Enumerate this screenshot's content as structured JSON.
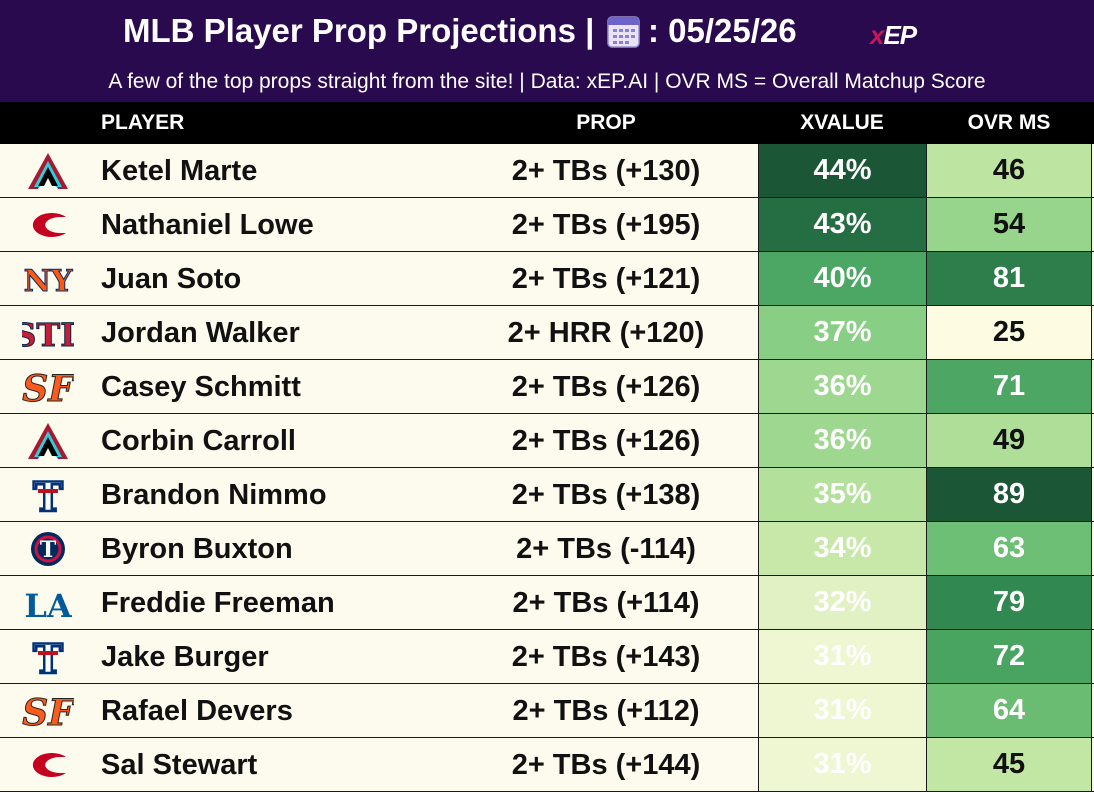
{
  "header": {
    "title": "MLB Player Prop Projections | ",
    "date": ": 05/25/26",
    "calendar_icon": "calendar-icon",
    "logo_x": "x",
    "logo_rest": "EP",
    "subtitle": "A few of the top props straight from the site! | Data: xEP.AI | OVR MS = Overall Matchup Score"
  },
  "columns": {
    "player": "PLAYER",
    "prop": "PROP",
    "xvalue": "XVALUE",
    "ovr_ms": "OVR MS"
  },
  "colors": {
    "header_bg": "#2a0a4e",
    "col_header_bg": "#000000",
    "row_bg": "#fdfbee",
    "scale_low": "#fdfbe3",
    "scale_high": "#1b5e37"
  },
  "chart_data": {
    "type": "table",
    "columns": [
      "PLAYER",
      "PROP",
      "XVALUE",
      "OVR MS"
    ],
    "rows": [
      {
        "team": "ARI",
        "team_icon": "diamondbacks-logo-icon",
        "player": "Ketel Marte",
        "prop": "2+ TBs (+130)",
        "xvalue": "44%",
        "xvalue_num": 44,
        "ovr": "46",
        "ovr_num": 46
      },
      {
        "team": "CIN",
        "team_icon": "reds-logo-icon",
        "player": "Nathaniel Lowe",
        "prop": "2+ TBs (+195)",
        "xvalue": "43%",
        "xvalue_num": 43,
        "ovr": "54",
        "ovr_num": 54
      },
      {
        "team": "NYM",
        "team_icon": "mets-logo-icon",
        "player": "Juan Soto",
        "prop": "2+ TBs (+121)",
        "xvalue": "40%",
        "xvalue_num": 40,
        "ovr": "81",
        "ovr_num": 81
      },
      {
        "team": "STL",
        "team_icon": "cardinals-logo-icon",
        "player": "Jordan Walker",
        "prop": "2+ HRR (+120)",
        "xvalue": "37%",
        "xvalue_num": 37,
        "ovr": "25",
        "ovr_num": 25
      },
      {
        "team": "SF",
        "team_icon": "giants-logo-icon",
        "player": "Casey Schmitt",
        "prop": "2+ TBs (+126)",
        "xvalue": "36%",
        "xvalue_num": 36,
        "ovr": "71",
        "ovr_num": 71
      },
      {
        "team": "ARI",
        "team_icon": "diamondbacks-logo-icon",
        "player": "Corbin Carroll",
        "prop": "2+ TBs (+126)",
        "xvalue": "36%",
        "xvalue_num": 36,
        "ovr": "49",
        "ovr_num": 49
      },
      {
        "team": "TEX",
        "team_icon": "rangers-logo-icon",
        "player": "Brandon Nimmo",
        "prop": "2+ TBs (+138)",
        "xvalue": "35%",
        "xvalue_num": 35,
        "ovr": "89",
        "ovr_num": 89
      },
      {
        "team": "MIN",
        "team_icon": "twins-logo-icon",
        "player": "Byron Buxton",
        "prop": "2+ TBs (-114)",
        "xvalue": "34%",
        "xvalue_num": 34,
        "ovr": "63",
        "ovr_num": 63
      },
      {
        "team": "LAD",
        "team_icon": "dodgers-logo-icon",
        "player": "Freddie Freeman",
        "prop": "2+ TBs (+114)",
        "xvalue": "32%",
        "xvalue_num": 32,
        "ovr": "79",
        "ovr_num": 79
      },
      {
        "team": "TEX",
        "team_icon": "rangers-logo-icon",
        "player": "Jake Burger",
        "prop": "2+ TBs (+143)",
        "xvalue": "31%",
        "xvalue_num": 31,
        "ovr": "72",
        "ovr_num": 72
      },
      {
        "team": "SF",
        "team_icon": "giants-logo-icon",
        "player": "Rafael Devers",
        "prop": "2+ TBs (+112)",
        "xvalue": "31%",
        "xvalue_num": 31,
        "ovr": "64",
        "ovr_num": 64
      },
      {
        "team": "CIN",
        "team_icon": "reds-logo-icon",
        "player": "Sal Stewart",
        "prop": "2+ TBs (+144)",
        "xvalue": "31%",
        "xvalue_num": 31,
        "ovr": "45",
        "ovr_num": 45
      }
    ]
  }
}
